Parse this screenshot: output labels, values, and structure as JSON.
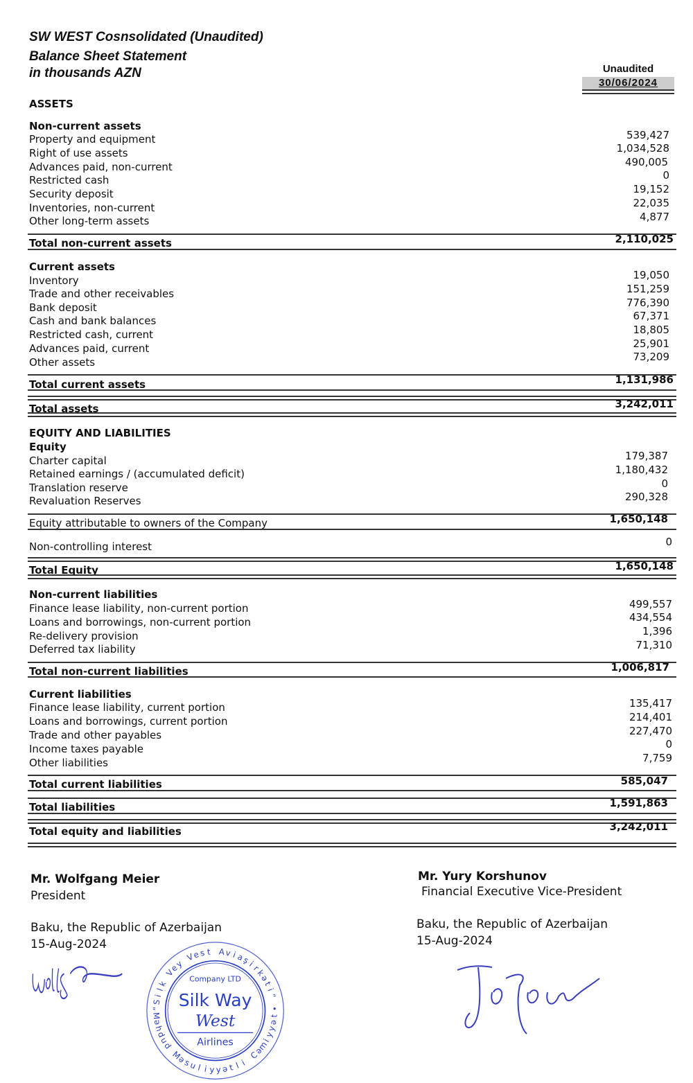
{
  "title": {
    "line1": "SW WEST Cosnsolidated (Unaudited)",
    "line2": "Balance Sheet Statement",
    "line3": "in thousands AZN"
  },
  "column": {
    "label": "Unaudited",
    "date": "30/06/2024"
  },
  "assets": {
    "heading": "ASSETS",
    "non_current": {
      "heading": "Non-current assets",
      "items": [
        {
          "label": "Property and equipment",
          "value": "539,427"
        },
        {
          "label": "Right of use assets",
          "value": "1,034,528"
        },
        {
          "label": "Advances paid, non-current",
          "value": "490,005"
        },
        {
          "label": "Restricted cash",
          "value": "0"
        },
        {
          "label": "Security deposit",
          "value": "19,152"
        },
        {
          "label": "Inventories, non-current",
          "value": "22,035"
        },
        {
          "label": "Other long-term assets",
          "value": "4,877"
        }
      ],
      "total_label": "Total non-current assets",
      "total_value": "2,110,025"
    },
    "current": {
      "heading": "Current assets",
      "items": [
        {
          "label": "Inventory",
          "value": "19,050"
        },
        {
          "label": "Trade and other receivables",
          "value": "151,259"
        },
        {
          "label": "Bank deposit",
          "value": "776,390"
        },
        {
          "label": "Cash and bank balances",
          "value": "67,371"
        },
        {
          "label": "Restricted cash, current",
          "value": "18,805"
        },
        {
          "label": "Advances paid, current",
          "value": "25,901"
        },
        {
          "label": "Other assets",
          "value": "73,209"
        }
      ],
      "total_label": "Total current assets",
      "total_value": "1,131,986"
    },
    "total_label": "Total assets",
    "total_value": "3,242,011"
  },
  "equity_liabilities": {
    "heading": "EQUITY AND LIABILITIES",
    "equity": {
      "heading": "Equity",
      "items": [
        {
          "label": "Charter capital",
          "value": "179,387"
        },
        {
          "label": "Retained earnings / (accumulated deficit)",
          "value": "1,180,432"
        },
        {
          "label": "Translation reserve",
          "value": "0"
        },
        {
          "label": "Revaluation Reserves",
          "value": "290,328"
        }
      ],
      "attributable_label": "Equity attributable to owners of the Company",
      "attributable_value": "1,650,148",
      "nci_label": "Non-controlling interest",
      "nci_value": "0",
      "total_label": "Total Equity",
      "total_value": "1,650,148"
    },
    "non_current": {
      "heading": "Non-current liabilities",
      "items": [
        {
          "label": "Finance lease liability, non-current portion",
          "value": "499,557"
        },
        {
          "label": "Loans and borrowings, non-current portion",
          "value": "434,554"
        },
        {
          "label": "Re-delivery provision",
          "value": "1,396"
        },
        {
          "label": "Deferred tax liability",
          "value": "71,310"
        }
      ],
      "total_label": "Total non-current liabilities",
      "total_value": "1,006,817"
    },
    "current": {
      "heading": "Current liabilities",
      "items": [
        {
          "label": "Finance lease liability, current portion",
          "value": "135,417"
        },
        {
          "label": "Loans and borrowings, current portion",
          "value": "214,401"
        },
        {
          "label": "Trade and other payables",
          "value": "227,470"
        },
        {
          "label": "Income taxes payable",
          "value": "0"
        },
        {
          "label": "Other liabilities",
          "value": "7,759"
        }
      ],
      "total_label": "Total current liabilities",
      "total_value": "585,047"
    },
    "total_liabilities_label": "Total liabilities",
    "total_liabilities_value": "1,591,863",
    "total_label": "Total equity and liabilities",
    "total_value": "3,242,011"
  },
  "signatories": [
    {
      "name": "Mr. Wolfgang Meier",
      "title": "President",
      "place": "Baku, the Republic of Azerbaijan",
      "date": "15-Aug-2024"
    },
    {
      "name": "Mr. Yury Korshunov",
      "title": "Financial Executive Vice-President",
      "place": "Baku, the Republic of Azerbaijan",
      "date": "15-Aug-2024"
    }
  ],
  "stamp": {
    "outer_text": "\"Silk Vey Vest Aviaşirkəti\" • Məhdud Məsuliyyətli Cəmiyyət",
    "company": "Company LTD",
    "brand1": "Silk Way",
    "brand2": "West",
    "brand3": "Airlines"
  },
  "colors": {
    "ink": "#111111",
    "stamp": "#2b3fc4",
    "signature": "#3a3fbf"
  }
}
